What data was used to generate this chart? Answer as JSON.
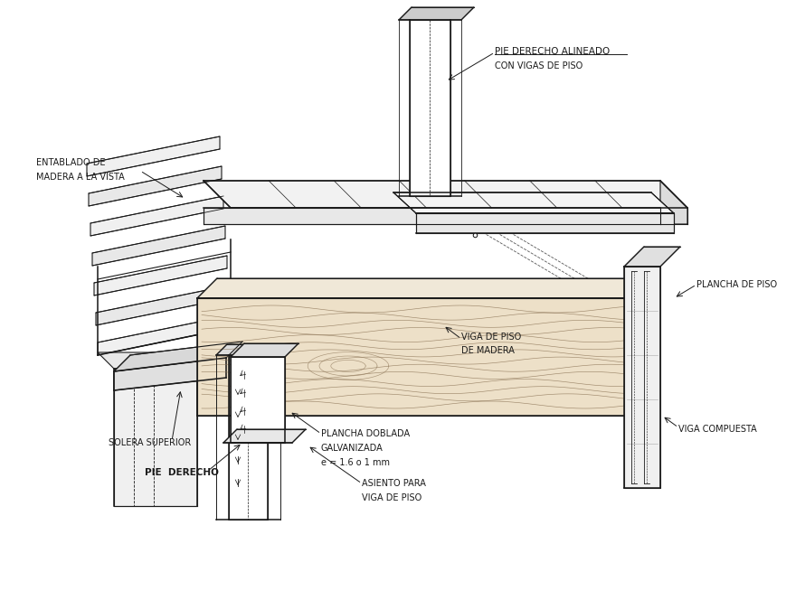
{
  "bg": "#ffffff",
  "lc": "#1a1a1a",
  "figsize": [
    8.7,
    6.64
  ],
  "dpi": 100,
  "labels": {
    "pie_derecho_alineado_1": "PIE DERECHO ALINEADO",
    "pie_derecho_alineado_2": "CON VIGAS DE PISO",
    "entablado_1": "ENTABLADO DE",
    "entablado_2": "MADERA A LA VISTA",
    "plancha_piso": "PLANCHA DE PISO",
    "viga_piso_1": "VIGA DE PISO",
    "viga_piso_2": "DE MADERA",
    "solera": "SOLERA SUPERIOR",
    "pie_derecho": "PIE  DERECHO",
    "plancha_dobl_1": "PLANCHA DOBLADA",
    "plancha_dobl_2": "GALVANIZADA",
    "plancha_dobl_3": "e = 1.6 o 1 mm",
    "asiento_1": "ASIENTO PARA",
    "asiento_2": "VIGA DE PISO",
    "viga_comp": "VIGA COMPUESTA"
  },
  "fontsize": 7,
  "lw": 0.8
}
